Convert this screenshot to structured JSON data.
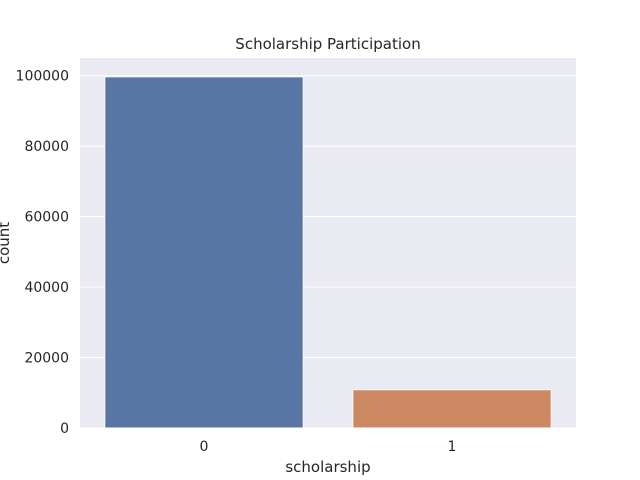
{
  "chart_data": {
    "type": "bar",
    "title": "Scholarship Participation",
    "xlabel": "scholarship",
    "ylabel": "count",
    "categories": [
      "0",
      "1"
    ],
    "values": [
      99666,
      10861
    ],
    "ylim": [
      0,
      105000
    ],
    "yticks": [
      0,
      20000,
      40000,
      60000,
      80000,
      100000
    ],
    "colors": [
      "#5875a4",
      "#cc8963"
    ],
    "plot_background": "#eaeaf2",
    "grid": true,
    "grid_color": "#ffffff"
  }
}
